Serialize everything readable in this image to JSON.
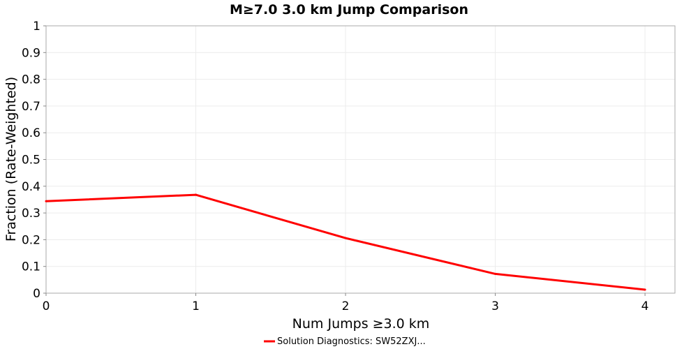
{
  "chart_data": {
    "type": "line",
    "title": "M≥7.0 3.0 km Jump Comparison",
    "xlabel": "Num Jumps ≥3.0 km",
    "ylabel": "Fraction (Rate-Weighted)",
    "xlim": [
      0,
      4.2
    ],
    "ylim": [
      0,
      1
    ],
    "x_ticks": [
      0,
      1,
      2,
      3,
      4
    ],
    "y_ticks": [
      0,
      0.1,
      0.2,
      0.3,
      0.4,
      0.5,
      0.6,
      0.7,
      0.8,
      0.9,
      1
    ],
    "y_tick_labels": [
      "0",
      "0.1",
      "0.2",
      "0.3",
      "0.4",
      "0.5",
      "0.6",
      "0.7",
      "0.8",
      "0.9",
      "1"
    ],
    "grid": true,
    "legend_position": "bottom-center",
    "series": [
      {
        "name": "Solution Diagnostics: SW52ZXJ...",
        "color": "#ff0000",
        "x": [
          0,
          1,
          2,
          3,
          4
        ],
        "y": [
          0.344,
          0.368,
          0.206,
          0.072,
          0.013
        ]
      }
    ]
  }
}
